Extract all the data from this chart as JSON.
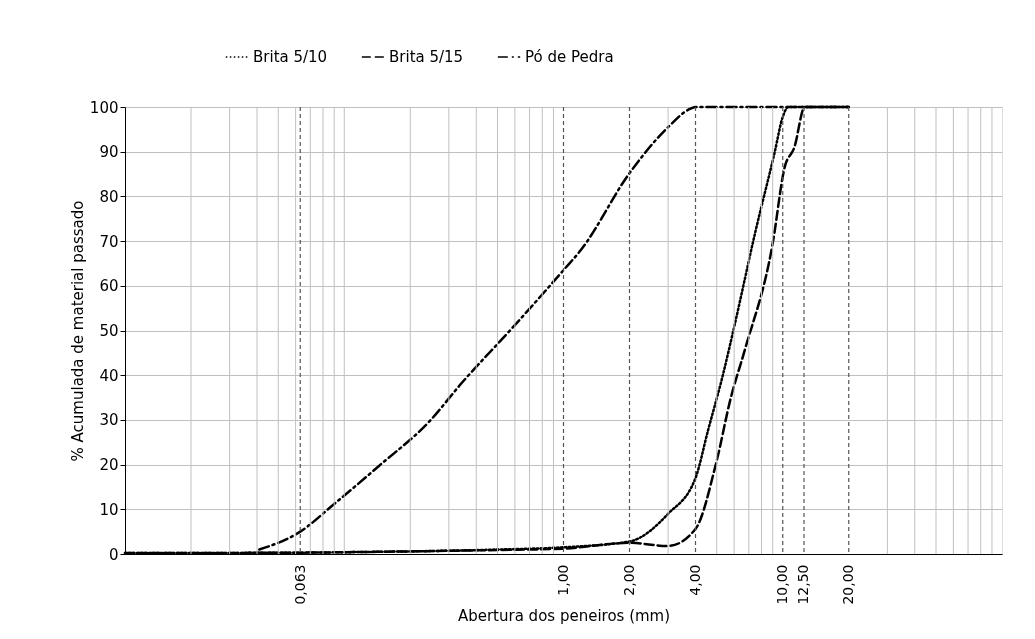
{
  "chart_data": {
    "type": "line",
    "xlabel": "Abertura dos peneiros (mm)",
    "ylabel": "% Acumulada de material passado",
    "log": "x",
    "xlim": [
      0.01,
      100
    ],
    "ylim": [
      0,
      100
    ],
    "xticks": [
      {
        "value": 0.02,
        "label": null
      },
      {
        "value": 0.03,
        "label": null
      },
      {
        "value": 0.04,
        "label": null
      },
      {
        "value": 0.05,
        "label": null
      },
      {
        "value": 0.06,
        "label": null
      },
      {
        "value": 0.063,
        "label": "0,063"
      },
      {
        "value": 0.07,
        "label": null
      },
      {
        "value": 0.08,
        "label": null
      },
      {
        "value": 0.09,
        "label": null
      },
      {
        "value": 0.1,
        "label": null
      },
      {
        "value": 0.2,
        "label": null
      },
      {
        "value": 0.3,
        "label": null
      },
      {
        "value": 0.4,
        "label": null
      },
      {
        "value": 0.5,
        "label": null
      },
      {
        "value": 0.6,
        "label": null
      },
      {
        "value": 0.7,
        "label": null
      },
      {
        "value": 0.8,
        "label": null
      },
      {
        "value": 0.9,
        "label": null
      },
      {
        "value": 1,
        "label": "1,00"
      },
      {
        "value": 2,
        "label": "2,00"
      },
      {
        "value": 3,
        "label": null
      },
      {
        "value": 4,
        "label": "4,00"
      },
      {
        "value": 5,
        "label": null
      },
      {
        "value": 6,
        "label": null
      },
      {
        "value": 7,
        "label": null
      },
      {
        "value": 8,
        "label": null
      },
      {
        "value": 9,
        "label": null
      },
      {
        "value": 10,
        "label": "10,00"
      },
      {
        "value": 12.5,
        "label": "12,50"
      },
      {
        "value": 20,
        "label": "20,00"
      },
      {
        "value": 30,
        "label": null
      },
      {
        "value": 40,
        "label": null
      },
      {
        "value": 50,
        "label": null
      },
      {
        "value": 60,
        "label": null
      },
      {
        "value": 70,
        "label": null
      },
      {
        "value": 80,
        "label": null
      },
      {
        "value": 90,
        "label": null
      }
    ],
    "yticks": [
      0,
      10,
      20,
      30,
      40,
      50,
      60,
      70,
      80,
      90,
      100
    ],
    "grid": true,
    "legend": "top",
    "series": [
      {
        "name": "Brita 5/10",
        "color": "#000000",
        "line_style": "dotted",
        "x": [
          0.01,
          0.063,
          0.1,
          0.5,
          1,
          2,
          3,
          4,
          4.56,
          5.33,
          6.05,
          7.47,
          9.2,
          10,
          10.6,
          12.5,
          20
        ],
        "values": [
          0.2,
          0.3,
          0.4,
          1.0,
          1.5,
          2.8,
          9,
          17,
          27.6,
          40,
          51.5,
          71.7,
          90,
          97.8,
          100,
          100,
          100
        ]
      },
      {
        "name": "Brita 5/15",
        "color": "#000000",
        "line_style": "dashed",
        "x": [
          0.01,
          0.063,
          0.1,
          0.5,
          1,
          2,
          3,
          4,
          4.96,
          5.8,
          6.7,
          9,
          10.2,
          11.3,
          12.6,
          20
        ],
        "values": [
          0.2,
          0.3,
          0.4,
          0.9,
          1.2,
          2.5,
          1.8,
          5.6,
          20.2,
          35,
          45.5,
          69.5,
          86.5,
          91,
          100,
          100
        ]
      },
      {
        "name": "Pó de Pedra",
        "color": "#000000",
        "line_style": "dashdot",
        "x": [
          0.041,
          0.063,
          0.09,
          0.144,
          0.246,
          0.344,
          0.58,
          1,
          1.2,
          2,
          3,
          3.75,
          4,
          10,
          20
        ],
        "values": [
          1,
          5,
          11.2,
          19.7,
          29.8,
          38.3,
          50.4,
          63.5,
          68,
          85.2,
          95.5,
          99.5,
          100,
          100,
          100
        ]
      }
    ]
  }
}
